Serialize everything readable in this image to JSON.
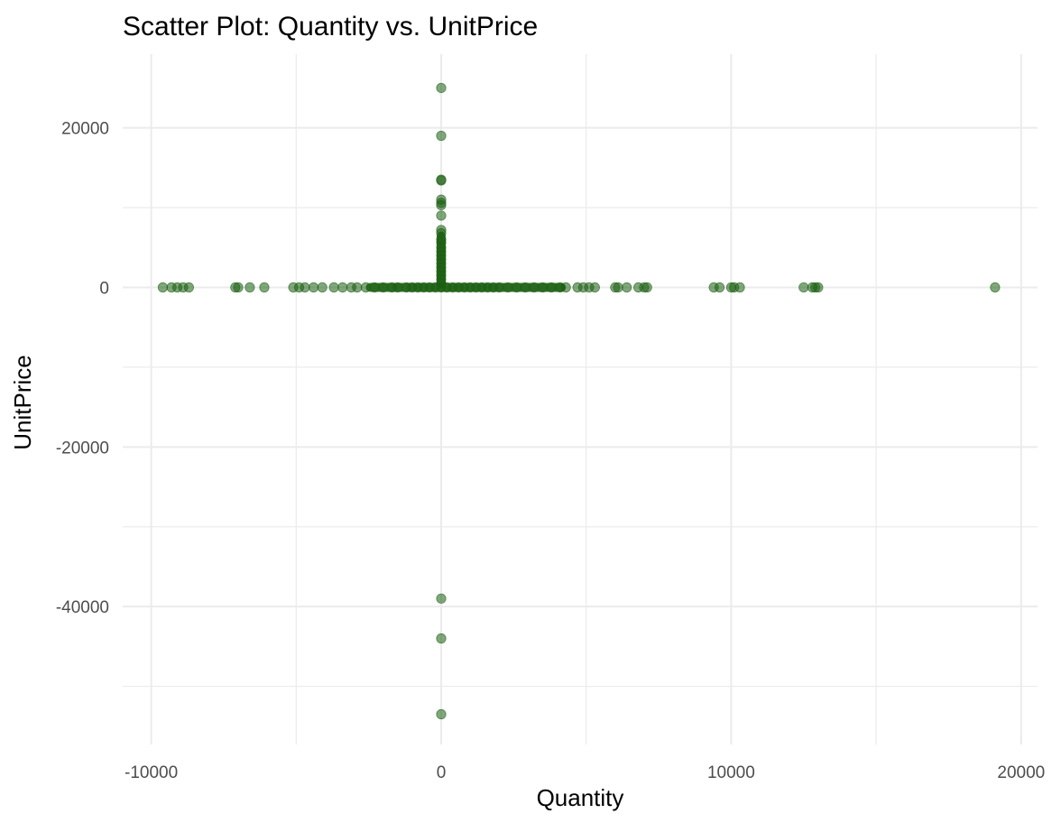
{
  "chart_data": {
    "type": "scatter",
    "title": "Scatter Plot: Quantity vs. UnitPrice",
    "xlabel": "Quantity",
    "ylabel": "UnitPrice",
    "xlim": [
      -10000,
      20000
    ],
    "ylim": [
      -55000,
      26000
    ],
    "x_ticks": [
      -10000,
      0,
      10000,
      20000
    ],
    "x_tick_labels": [
      "-10000",
      "0",
      "10000",
      "20000"
    ],
    "y_ticks": [
      -40000,
      -20000,
      0,
      20000
    ],
    "y_tick_labels": [
      "-40000",
      "-20000",
      "0",
      "20000"
    ],
    "x_minor_ticks": [
      -5000,
      5000,
      15000
    ],
    "y_minor_ticks": [
      -50000,
      -30000,
      -10000,
      10000
    ],
    "grid": true,
    "legend": "none",
    "point_color": "#1a5e10",
    "point_opacity": 0.55,
    "series": [
      {
        "points": [
          [
            -9600,
            0
          ],
          [
            -9300,
            0
          ],
          [
            -9100,
            0
          ],
          [
            -8900,
            0
          ],
          [
            -8700,
            0
          ],
          [
            -7100,
            0
          ],
          [
            -7000,
            0
          ],
          [
            -6600,
            0
          ],
          [
            -6100,
            0
          ],
          [
            -5100,
            0
          ],
          [
            -4900,
            0
          ],
          [
            -4700,
            0
          ],
          [
            -4400,
            0
          ],
          [
            -4100,
            0
          ],
          [
            -3700,
            0
          ],
          [
            -3400,
            0
          ],
          [
            -3100,
            0
          ],
          [
            -2900,
            0
          ],
          [
            -2600,
            0
          ],
          [
            -2300,
            0
          ],
          [
            -2000,
            0
          ],
          [
            -1700,
            0
          ],
          [
            -1500,
            0
          ],
          [
            -1200,
            0
          ],
          [
            -1000,
            0
          ],
          [
            -800,
            0
          ],
          [
            -600,
            0
          ],
          [
            -400,
            0
          ],
          [
            -200,
            0
          ],
          [
            0,
            25000
          ],
          [
            0,
            19000
          ],
          [
            0,
            13500
          ],
          [
            0,
            13400
          ],
          [
            0,
            11000
          ],
          [
            0,
            10600
          ],
          [
            0,
            10300
          ],
          [
            0,
            9000
          ],
          [
            0,
            7200
          ],
          [
            0,
            6800
          ],
          [
            0,
            6000
          ],
          [
            0,
            5600
          ],
          [
            0,
            5000
          ],
          [
            0,
            4500
          ],
          [
            0,
            4000
          ],
          [
            0,
            3500
          ],
          [
            0,
            3000
          ],
          [
            0,
            2500
          ],
          [
            0,
            2000
          ],
          [
            0,
            1500
          ],
          [
            0,
            1000
          ],
          [
            0,
            500
          ],
          [
            0,
            0
          ],
          [
            0,
            -39000
          ],
          [
            0,
            -44000
          ],
          [
            0,
            -53500
          ],
          [
            200,
            0
          ],
          [
            400,
            0
          ],
          [
            600,
            0
          ],
          [
            800,
            0
          ],
          [
            1000,
            0
          ],
          [
            1200,
            0
          ],
          [
            1400,
            0
          ],
          [
            1600,
            0
          ],
          [
            1800,
            0
          ],
          [
            2000,
            0
          ],
          [
            2300,
            0
          ],
          [
            2600,
            0
          ],
          [
            2900,
            0
          ],
          [
            3200,
            0
          ],
          [
            3500,
            0
          ],
          [
            3800,
            0
          ],
          [
            4100,
            0
          ],
          [
            4300,
            0
          ],
          [
            4700,
            0
          ],
          [
            4900,
            0
          ],
          [
            5100,
            0
          ],
          [
            5300,
            0
          ],
          [
            6000,
            0
          ],
          [
            6100,
            0
          ],
          [
            6400,
            0
          ],
          [
            6800,
            0
          ],
          [
            7000,
            0
          ],
          [
            7100,
            0
          ],
          [
            9400,
            0
          ],
          [
            9600,
            0
          ],
          [
            10000,
            0
          ],
          [
            10100,
            0
          ],
          [
            10300,
            0
          ],
          [
            12500,
            0
          ],
          [
            12800,
            0
          ],
          [
            12900,
            0
          ],
          [
            13000,
            0
          ],
          [
            19100,
            0
          ]
        ]
      }
    ]
  }
}
